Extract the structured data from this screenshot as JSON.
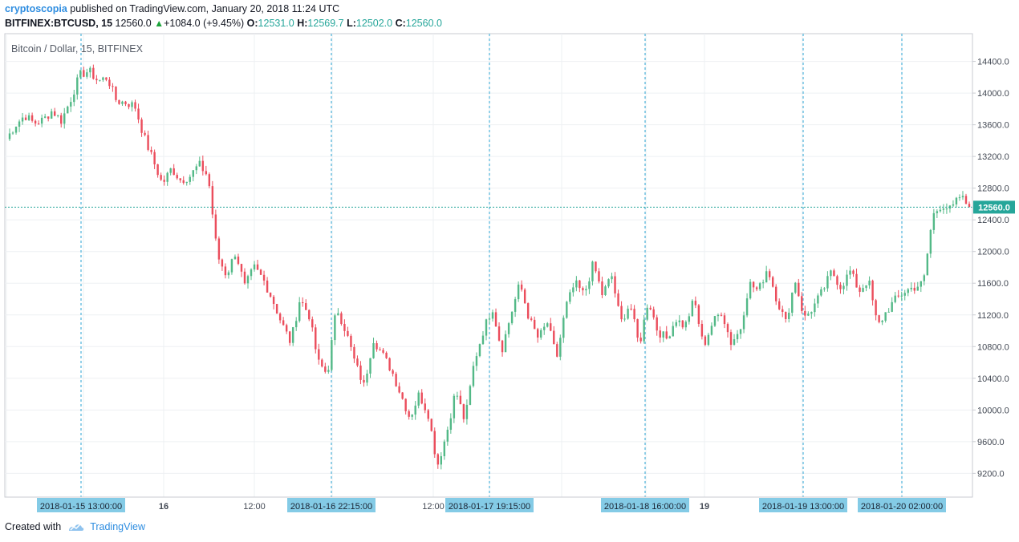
{
  "header": {
    "author": "cryptoscopia",
    "published_text": "published on TradingView.com, January 20, 2018 11:24 UTC",
    "symbol": "BITFINEX:BTCUSD, 15",
    "last": "12560.0",
    "change": "+1084.0 (+9.45%)",
    "o_label": "O:",
    "o_value": "12531.0",
    "h_label": "H:",
    "h_value": "12569.7",
    "l_label": "L:",
    "l_value": "12502.0",
    "c_label": "C:",
    "c_value": "12560.0"
  },
  "footer": {
    "created_with": "Created with",
    "brand": "TradingView"
  },
  "colors": {
    "up": "#53b987",
    "down": "#eb4d5c",
    "accent": "#2e8de0",
    "vline": "#5ab8dd",
    "price_line": "#26a69a"
  },
  "chart_data": {
    "type": "candlestick",
    "title": "Bitcoin / Dollar, 15, BITFINEX",
    "ylim": [
      8900,
      14750
    ],
    "y_ticks": [
      "14400.0",
      "14000.0",
      "13600.0",
      "13200.0",
      "12800.0",
      "12400.0",
      "12000.0",
      "11600.0",
      "11200.0",
      "10800.0",
      "10400.0",
      "10000.0",
      "9600.0",
      "9200.0"
    ],
    "x_ticks": [
      "16",
      "12:00",
      "12:00",
      "19"
    ],
    "current_price": "12560.0",
    "marker_labels": [
      "2018-01-15 13:00:00",
      "2018-01-16 22:15:00",
      "2018-01-17 19:15:00",
      "2018-01-18 16:00:00",
      "2018-01-19 13:00:00",
      "2018-01-20 02:00:00"
    ],
    "close_path": [
      13420,
      13600,
      13720,
      13620,
      13660,
      13780,
      13650,
      13920,
      14230,
      14280,
      14150,
      14200,
      13900,
      13880,
      13840,
      13450,
      13150,
      12850,
      13050,
      12900,
      12950,
      13100,
      12950,
      11950,
      11700,
      12000,
      11550,
      11800,
      11650,
      11400,
      11100,
      10850,
      11400,
      11200,
      10600,
      10450,
      11300,
      11000,
      10600,
      10300,
      10900,
      10700,
      10500,
      10200,
      9900,
      10200,
      9950,
      9300,
      9700,
      10250,
      9850,
      10600,
      11000,
      11300,
      10750,
      11200,
      11600,
      11150,
      10900,
      11100,
      10650,
      11300,
      11600,
      11450,
      11850,
      11450,
      11700,
      11100,
      11350,
      10800,
      11400,
      11000,
      10900,
      11150,
      11050,
      11400,
      10800,
      11100,
      11250,
      10850,
      11000,
      11600,
      11500,
      11800,
      11400,
      11100,
      11650,
      11150,
      11300,
      11500,
      11750,
      11550,
      11750,
      11500,
      11650,
      11050,
      11250,
      11400,
      11500,
      11550,
      11600,
      12450,
      12600,
      12520,
      12700,
      12560
    ]
  }
}
